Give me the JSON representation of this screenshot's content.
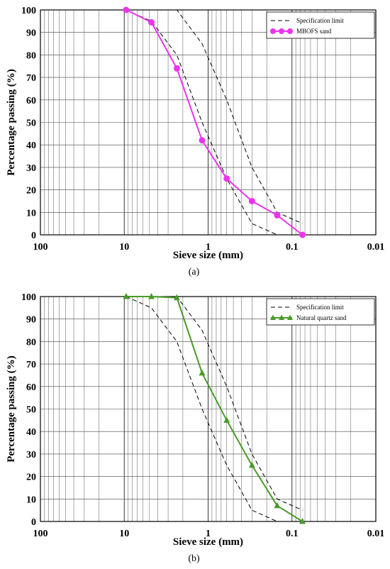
{
  "chart_data": [
    {
      "type": "line",
      "panel_label": "(a)",
      "xlabel": "Sieve size (mm)",
      "ylabel": "Percentage passing (%)",
      "x_scale": "log",
      "x_reversed": true,
      "xlim": [
        100,
        0.01
      ],
      "ylim": [
        0,
        100
      ],
      "x_ticks": [
        100,
        10,
        1,
        0.1,
        0.01
      ],
      "x_tick_labels": [
        "100",
        "10",
        "1",
        "0.1",
        "0.01"
      ],
      "y_ticks": [
        0,
        10,
        20,
        30,
        40,
        50,
        60,
        70,
        80,
        90,
        100
      ],
      "y_tick_labels": [
        "0",
        "10",
        "20",
        "30",
        "40",
        "50",
        "60",
        "70",
        "80",
        "90",
        "100"
      ],
      "grid": true,
      "legend_position": "top-right",
      "spec_upper": {
        "x": [
          9.5,
          4.75,
          2.36,
          1.18,
          0.6,
          0.3,
          0.15,
          0.075
        ],
        "y": [
          100,
          100,
          100,
          85,
          60,
          30,
          10,
          5
        ]
      },
      "spec_lower": {
        "x": [
          9.5,
          4.75,
          2.36,
          1.18,
          0.6,
          0.3,
          0.15,
          0.075
        ],
        "y": [
          100,
          95,
          80,
          50,
          25,
          5,
          0,
          0
        ]
      },
      "series": [
        {
          "name": "Specification limit",
          "style": "dashed",
          "color": "#000000"
        },
        {
          "name": "MBOFS sand",
          "style": "solid",
          "marker": "circle",
          "color": "#ee33ee",
          "x": [
            9.5,
            4.75,
            2.36,
            1.18,
            0.6,
            0.3,
            0.15,
            0.075
          ],
          "y": [
            100,
            94.5,
            74,
            42,
            25,
            15,
            8.7,
            0
          ]
        }
      ]
    },
    {
      "type": "line",
      "panel_label": "(b)",
      "xlabel": "Sieve size (mm)",
      "ylabel": "Percentage passing (%)",
      "x_scale": "log",
      "x_reversed": true,
      "xlim": [
        100,
        0.01
      ],
      "ylim": [
        0,
        100
      ],
      "x_ticks": [
        100,
        10,
        1,
        0.1,
        0.01
      ],
      "x_tick_labels": [
        "100",
        "10",
        "1",
        "0.1",
        "0.01"
      ],
      "y_ticks": [
        0,
        10,
        20,
        30,
        40,
        50,
        60,
        70,
        80,
        90,
        100
      ],
      "y_tick_labels": [
        "0",
        "10",
        "20",
        "30",
        "40",
        "50",
        "60",
        "70",
        "80",
        "90",
        "100"
      ],
      "grid": true,
      "legend_position": "top-right",
      "spec_upper": {
        "x": [
          9.5,
          4.75,
          2.36,
          1.18,
          0.6,
          0.3,
          0.15,
          0.075
        ],
        "y": [
          100,
          100,
          100,
          85,
          60,
          30,
          10,
          5
        ]
      },
      "spec_lower": {
        "x": [
          9.5,
          4.75,
          2.36,
          1.18,
          0.6,
          0.3,
          0.15,
          0.075
        ],
        "y": [
          100,
          95,
          80,
          50,
          25,
          5,
          0,
          0
        ]
      },
      "series": [
        {
          "name": "Specification limit",
          "style": "dashed",
          "color": "#000000"
        },
        {
          "name": "Natural quartz sand",
          "style": "solid",
          "marker": "triangle",
          "color": "#4a9a2a",
          "x": [
            9.5,
            4.75,
            2.36,
            1.18,
            0.6,
            0.3,
            0.15,
            0.075
          ],
          "y": [
            100,
            100,
            99.5,
            66,
            45,
            25,
            7,
            0
          ]
        }
      ]
    }
  ]
}
